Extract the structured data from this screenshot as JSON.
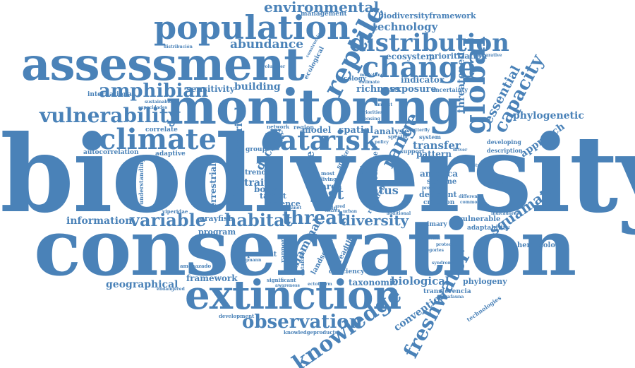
{
  "color": "#4a82b8",
  "cloud": {
    "biodiversity": "biodiversity",
    "conservation": "conservation",
    "monitoring": "monitoring",
    "assessment": "assessment",
    "extinction": "extinction",
    "population": "population",
    "climate": "climate",
    "reptile": "reptile",
    "change": "change",
    "distribution": "distribution",
    "global": "global",
    "data": "data",
    "risk": "risk",
    "vulnerability": "vulnerability",
    "amphibian": "amphibian",
    "knowledge": "knowledge",
    "observation": "observation",
    "freshwater": "freshwater",
    "habitat": "habitat",
    "threat": "threat",
    "diversity": "diversity",
    "variable": "variable",
    "information": "information",
    "squamate": "squamate",
    "environmental": "environmental",
    "technology": "technology",
    "abundance": "abundance",
    "range": "range",
    "capacity": "capacity",
    "essential": "essential",
    "threatened": "threatened",
    "phylogenetic": "phylogenetic",
    "approach": "approach",
    "building": "building",
    "richness": "richness",
    "exposure": "exposure",
    "indicator": "indicator",
    "sensitivity": "sensitivity",
    "ecosystem": "ecosystem",
    "prioritization": "prioritization",
    "transfer": "transfer",
    "biodiversityframework": "biodiversityframework",
    "management": "management",
    "spatial": "spatial",
    "analyse": "analyse",
    "pattern": "pattern",
    "list": "list",
    "status": "status",
    "area": "area",
    "baseline": "baseline",
    "trait": "trait",
    "trend": "trend",
    "science": "science",
    "target": "target",
    "body": "body",
    "size": "size",
    "decline": "decline",
    "historical": "historical",
    "model": "model",
    "geographical": "geographical",
    "framework": "framework",
    "program": "program",
    "crayfish": "crayfish",
    "mammal": "mammal",
    "taxonomic": "taxonomic",
    "biological": "biological",
    "convention": "convention",
    "phylogeny": "phylogeny",
    "herpetology": "herpetology",
    "vulnerable": "vulnerable",
    "adaptability": "adaptability",
    "primary": "primary",
    "deficient": "deficient",
    "criterion": "criterion",
    "america": "america",
    "scheme": "scheme",
    "autocorrelation": "autocorrelation",
    "correlate": "correlate",
    "adaptive": "adaptive",
    "international": "international",
    "terrestrial": "terrestrial",
    "important": "important",
    "deficiency": "deficiency",
    "landscape": "landscape",
    "breadth": "breadth",
    "transferencia": "transferencia",
    "technologies": "technologies",
    "development": "development",
    "knowledgeproducts": "knowledgeproducts",
    "uncertainty": "uncertainty",
    "support": "support",
    "system": "system",
    "developing": "developing",
    "description": "description",
    "geographic": "geographic",
    "ecology": "ecology",
    "region": "region",
    "network": "network",
    "source": "source",
    "group": "group",
    "understanding": "understanding",
    "viperidae": "viperidae",
    "information2": "ecological",
    "volunteer": "volunteer",
    "distribucion": "distribución",
    "construction": "construction",
    "modelling": "modelling",
    "comparative": "comparative",
    "estimate": "estimate",
    "butterfly": "butterfly",
    "sustainable": "sustainable",
    "capacidades": "capacidades",
    "amenazado": "amenazado",
    "bergmann": "bergmann",
    "significant": "significant",
    "awareness": "awareness",
    "ectotherm": "ectotherm",
    "endangered": "endangered",
    "convencion": "convención",
    "australian": "australian",
    "indicadores": "indicadores",
    "seasonal": "seasonal",
    "categories": "categories",
    "megafauna": "megafauna",
    "living": "living",
    "most": "most",
    "snake": "snake",
    "remote": "remote",
    "level": "level",
    "factor": "factor",
    "research": "research",
    "world": "world",
    "planet": "planet",
    "citizen": "citizen",
    "specific": "specific",
    "policy": "policy",
    "driver": "driver",
    "priorities": "priorities",
    "sensing": "sensing",
    "impact": "impact",
    "protected": "protected",
    "database": "database",
    "rapport": "rapport",
    "syndrome": "syndrome",
    "pressure": "pressure",
    "different": "different",
    "common": "common",
    "additional": "additional",
    "red": "red",
    "local": "local",
    "urban": "urban"
  }
}
